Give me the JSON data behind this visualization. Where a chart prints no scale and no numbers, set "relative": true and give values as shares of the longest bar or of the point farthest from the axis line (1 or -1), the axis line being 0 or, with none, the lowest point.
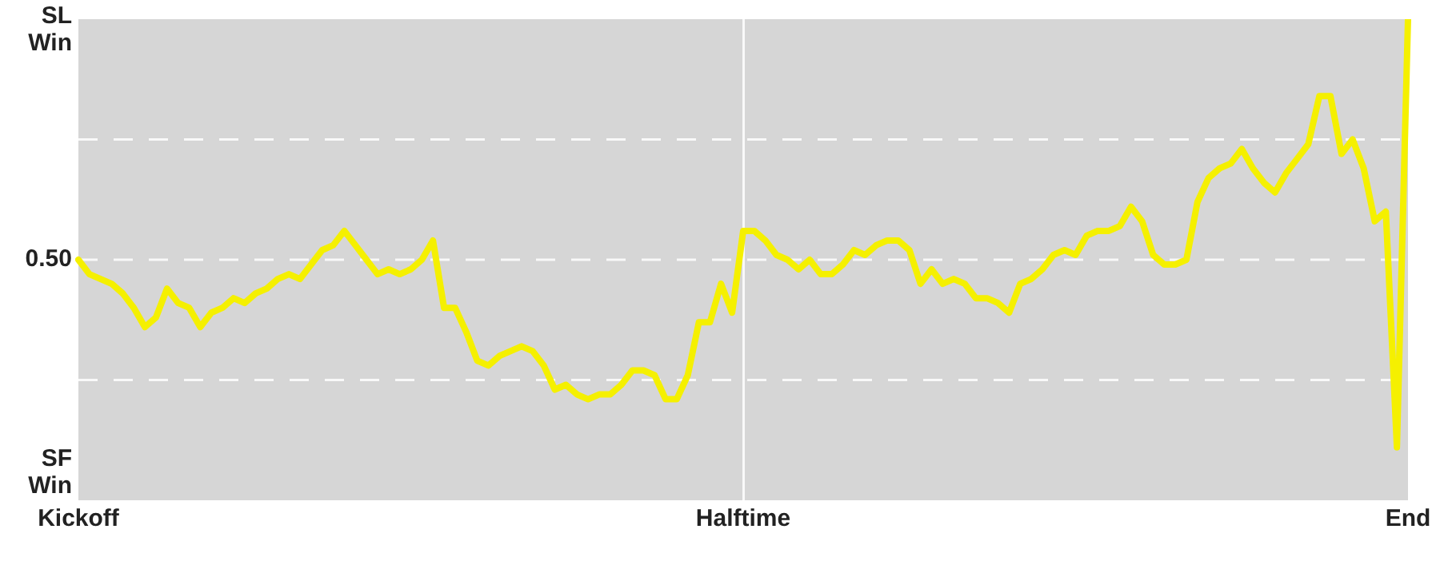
{
  "chart_data": {
    "type": "line",
    "relative": true,
    "grid": "x",
    "legend": false,
    "marker": "none",
    "line_style": "solid",
    "annotations": [
      "SL Win",
      "SF Win"
    ],
    "ref_lines": [
      {
        "axis": "y",
        "value": 0.75,
        "color": "#ffffff",
        "line_style": "dashed"
      },
      {
        "axis": "y",
        "value": 0.5,
        "label": "0.50",
        "color": "#ffffff",
        "line_style": "dashed"
      },
      {
        "axis": "y",
        "value": 0.25,
        "color": "#ffffff",
        "line_style": "dashed"
      }
    ],
    "categories": [
      "Kickoff",
      null,
      null,
      null,
      null,
      null,
      null,
      null,
      null,
      null,
      null,
      null,
      null,
      null,
      null,
      null,
      null,
      null,
      null,
      null,
      null,
      null,
      null,
      null,
      null,
      null,
      null,
      null,
      null,
      null,
      null,
      null,
      null,
      null,
      null,
      null,
      null,
      null,
      null,
      null,
      null,
      null,
      null,
      null,
      null,
      null,
      null,
      null,
      null,
      null,
      null,
      null,
      null,
      null,
      null,
      null,
      null,
      null,
      null,
      null,
      "Halftime",
      null,
      null,
      null,
      null,
      null,
      null,
      null,
      null,
      null,
      null,
      null,
      null,
      null,
      null,
      null,
      null,
      null,
      null,
      null,
      null,
      null,
      null,
      null,
      null,
      null,
      null,
      null,
      null,
      null,
      null,
      null,
      null,
      null,
      null,
      null,
      null,
      null,
      null,
      null,
      null,
      null,
      null,
      null,
      null,
      null,
      null,
      null,
      null,
      null,
      null,
      null,
      null,
      null,
      null,
      null,
      null,
      null,
      null,
      null,
      "End"
    ],
    "series": [
      {
        "color": "#f5f000",
        "values": [
          0.5,
          0.47,
          0.46,
          0.45,
          0.43,
          0.4,
          0.36,
          0.38,
          0.44,
          0.41,
          0.4,
          0.36,
          0.39,
          0.4,
          0.42,
          0.41,
          0.43,
          0.44,
          0.46,
          0.47,
          0.46,
          0.49,
          0.52,
          0.53,
          0.56,
          0.53,
          0.5,
          0.47,
          0.48,
          0.47,
          0.48,
          0.5,
          0.54,
          0.4,
          0.4,
          0.35,
          0.29,
          0.28,
          0.3,
          0.31,
          0.32,
          0.31,
          0.28,
          0.23,
          0.24,
          0.22,
          0.21,
          0.22,
          0.22,
          0.24,
          0.27,
          0.27,
          0.26,
          0.21,
          0.21,
          0.26,
          0.37,
          0.37,
          0.45,
          0.39,
          0.56,
          0.56,
          0.54,
          0.51,
          0.5,
          0.48,
          0.5,
          0.47,
          0.47,
          0.49,
          0.52,
          0.51,
          0.53,
          0.54,
          0.54,
          0.52,
          0.45,
          0.48,
          0.45,
          0.46,
          0.45,
          0.42,
          0.42,
          0.41,
          0.39,
          0.45,
          0.46,
          0.48,
          0.51,
          0.52,
          0.51,
          0.55,
          0.56,
          0.56,
          0.57,
          0.61,
          0.58,
          0.51,
          0.49,
          0.49,
          0.5,
          0.62,
          0.67,
          0.69,
          0.7,
          0.73,
          0.69,
          0.66,
          0.64,
          0.68,
          0.71,
          0.74,
          0.84,
          0.84,
          0.72,
          0.75,
          0.69,
          0.58,
          0.6,
          0.11,
          1.0
        ]
      }
    ]
  }
}
